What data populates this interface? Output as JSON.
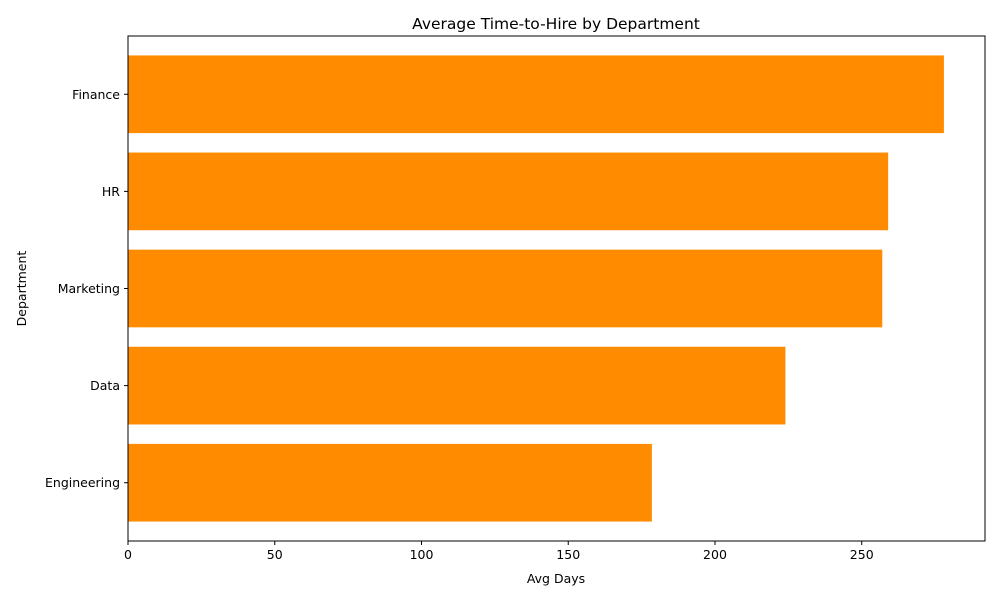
{
  "chart_data": {
    "type": "bar",
    "orientation": "horizontal",
    "title": "Average Time-to-Hire by Department",
    "xlabel": "Avg Days",
    "ylabel": "Department",
    "categories": [
      "Engineering",
      "Data",
      "Marketing",
      "HR",
      "Finance"
    ],
    "values": [
      178.5,
      224,
      257,
      259,
      278
    ],
    "xlim": [
      0,
      292
    ],
    "xticks": [
      0,
      50,
      100,
      150,
      200,
      250
    ],
    "bar_color": "#ff8c00",
    "grid": false,
    "legend": "none"
  }
}
